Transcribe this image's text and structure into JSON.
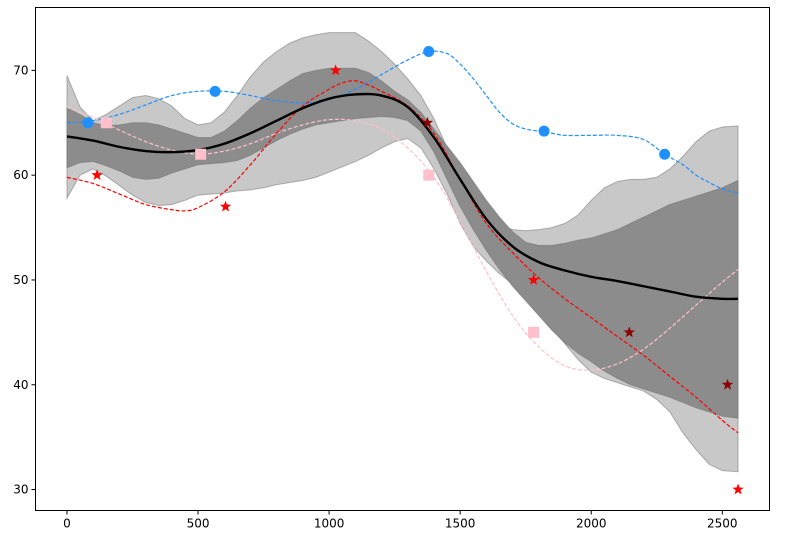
{
  "chart_data": {
    "type": "line",
    "title": "",
    "xlabel": "",
    "ylabel": "",
    "xlim": [
      -120,
      2680
    ],
    "ylim": [
      28,
      76
    ],
    "xticks": [
      0,
      500,
      1000,
      1500,
      2000,
      2500
    ],
    "yticks": [
      30,
      40,
      50,
      60,
      70
    ],
    "xtick_labels": [
      "0",
      "500",
      "1000",
      "1500",
      "2000",
      "2500"
    ],
    "ytick_labels": [
      "30",
      "40",
      "50",
      "60",
      "70"
    ],
    "grid": false,
    "legend": "none",
    "colors": {
      "mean": "#000000",
      "band_inner": "#8c8c8c",
      "band_outer": "#c8c8c8",
      "blue": "#1e90ff",
      "pink": "#ffc0cb",
      "red": "#ff0000",
      "darkred": "#8b0000"
    },
    "mean": {
      "x": [
        0,
        100,
        200,
        300,
        400,
        500,
        600,
        700,
        800,
        900,
        1000,
        1100,
        1200,
        1300,
        1400,
        1500,
        1600,
        1700,
        1800,
        1900,
        2000,
        2100,
        2200,
        2300,
        2400,
        2500,
        2560
      ],
      "y": [
        63.7,
        63.3,
        62.7,
        62.3,
        62.2,
        62.4,
        63.0,
        64.0,
        65.2,
        66.4,
        67.3,
        67.7,
        67.6,
        66.5,
        63.6,
        59.6,
        55.8,
        53.2,
        51.7,
        50.9,
        50.3,
        49.9,
        49.4,
        48.9,
        48.4,
        48.2,
        48.2
      ]
    },
    "inner_band": {
      "x": [
        0,
        50,
        100,
        150,
        200,
        250,
        300,
        350,
        400,
        450,
        500,
        550,
        600,
        650,
        700,
        750,
        800,
        850,
        900,
        950,
        1000,
        1050,
        1100,
        1150,
        1200,
        1250,
        1300,
        1350,
        1400,
        1450,
        1500,
        1550,
        1600,
        1650,
        1700,
        1750,
        1800,
        1850,
        1900,
        1950,
        2000,
        2050,
        2100,
        2150,
        2200,
        2250,
        2300,
        2350,
        2400,
        2450,
        2500,
        2560
      ],
      "upper": [
        66.4,
        65.8,
        65.0,
        64.7,
        64.8,
        65.0,
        65.0,
        64.8,
        64.4,
        64.0,
        63.6,
        63.6,
        64.2,
        65.2,
        66.4,
        67.4,
        68.2,
        69.0,
        69.7,
        70.0,
        70.2,
        70.2,
        70.2,
        69.8,
        69.0,
        68.0,
        67.2,
        66.0,
        64.4,
        62.8,
        61.2,
        59.4,
        57.6,
        56.0,
        54.6,
        53.6,
        53.3,
        53.3,
        53.5,
        53.8,
        54.0,
        54.4,
        54.8,
        55.4,
        56.0,
        56.6,
        57.2,
        57.6,
        58.0,
        58.4,
        58.8,
        59.5
      ],
      "lower": [
        60.7,
        61.2,
        61.3,
        60.9,
        60.4,
        59.8,
        59.6,
        59.7,
        60.2,
        60.6,
        61.0,
        61.1,
        61.2,
        61.4,
        61.9,
        62.6,
        63.3,
        63.9,
        64.4,
        64.8,
        65.0,
        65.2,
        65.4,
        65.5,
        65.6,
        65.5,
        65.2,
        64.2,
        62.2,
        59.6,
        57.0,
        54.8,
        52.8,
        51.0,
        49.4,
        48.0,
        46.6,
        45.2,
        44.0,
        43.0,
        42.2,
        41.3,
        40.6,
        40.0,
        39.6,
        39.2,
        38.8,
        38.3,
        37.8,
        37.4,
        37.0,
        36.8
      ]
    },
    "outer_band": {
      "x": [
        0,
        50,
        100,
        150,
        200,
        250,
        300,
        350,
        400,
        450,
        500,
        550,
        600,
        650,
        700,
        750,
        800,
        850,
        900,
        950,
        1000,
        1050,
        1100,
        1150,
        1200,
        1250,
        1300,
        1350,
        1400,
        1450,
        1500,
        1550,
        1600,
        1650,
        1700,
        1750,
        1800,
        1850,
        1900,
        1950,
        2000,
        2050,
        2100,
        2150,
        2200,
        2250,
        2300,
        2350,
        2400,
        2450,
        2500,
        2560
      ],
      "upper": [
        69.5,
        66.5,
        65.2,
        65.8,
        66.6,
        67.4,
        67.6,
        67.3,
        66.6,
        65.4,
        64.8,
        65.0,
        66.0,
        67.6,
        69.4,
        70.8,
        71.8,
        72.6,
        73.1,
        73.4,
        73.6,
        73.6,
        73.6,
        72.8,
        71.8,
        70.6,
        69.2,
        67.6,
        65.4,
        62.6,
        59.8,
        57.6,
        56.1,
        55.2,
        54.8,
        54.7,
        54.8,
        55.0,
        55.4,
        56.2,
        57.6,
        58.8,
        59.4,
        59.6,
        59.6,
        59.8,
        60.6,
        61.8,
        63.2,
        64.2,
        64.6,
        64.7
      ],
      "lower": [
        57.8,
        60.0,
        60.6,
        59.9,
        59.0,
        58.1,
        57.4,
        57.1,
        57.2,
        57.6,
        58.1,
        58.2,
        58.3,
        58.5,
        58.6,
        58.8,
        59.1,
        59.3,
        59.5,
        59.8,
        60.3,
        60.8,
        61.3,
        61.9,
        62.6,
        63.2,
        63.5,
        62.6,
        60.6,
        58.2,
        55.4,
        53.2,
        51.8,
        50.6,
        49.6,
        48.4,
        47.0,
        45.4,
        43.9,
        42.4,
        41.2,
        40.6,
        40.2,
        39.8,
        39.4,
        38.6,
        37.4,
        35.4,
        33.8,
        32.4,
        31.8,
        31.7
      ]
    },
    "series": [
      {
        "color": "#1e90ff",
        "marker": "circle",
        "x": [
          80,
          565,
          1380,
          1820,
          2280
        ],
        "y": [
          65.0,
          68.0,
          71.8,
          64.2,
          62.0
        ],
        "curve_x": [
          0,
          100,
          200,
          300,
          400,
          500,
          600,
          700,
          800,
          900,
          1000,
          1100,
          1200,
          1300,
          1380,
          1450,
          1500,
          1550,
          1600,
          1650,
          1700,
          1750,
          1800,
          1850,
          1900,
          2000,
          2100,
          2200,
          2280,
          2350,
          2400,
          2450,
          2500,
          2560
        ],
        "curve_y": [
          65.0,
          65.2,
          65.8,
          66.7,
          67.6,
          68.0,
          68.0,
          67.6,
          67.1,
          66.9,
          67.2,
          68.2,
          69.6,
          71.0,
          71.8,
          71.6,
          70.6,
          69.2,
          67.6,
          66.0,
          64.9,
          64.4,
          64.2,
          64.0,
          63.8,
          63.8,
          63.8,
          63.4,
          62.0,
          61.0,
          60.0,
          59.3,
          58.7,
          58.3
        ]
      },
      {
        "color": "#ffc0cb",
        "marker": "square",
        "x": [
          150,
          510,
          1380,
          1780
        ],
        "y": [
          65.0,
          62.0,
          60.0,
          45.0
        ],
        "curve_x": [
          0,
          100,
          200,
          300,
          400,
          500,
          600,
          700,
          800,
          900,
          1000,
          1100,
          1200,
          1300,
          1400,
          1500,
          1600,
          1700,
          1800,
          1900,
          2000,
          2100,
          2200,
          2300,
          2400,
          2500,
          2560
        ],
        "curve_y": [
          66.5,
          65.5,
          64.3,
          63.2,
          62.4,
          62.0,
          62.3,
          63.0,
          64.0,
          64.8,
          65.3,
          65.2,
          64.4,
          62.6,
          59.8,
          55.6,
          50.8,
          46.6,
          43.6,
          41.8,
          41.4,
          42.0,
          43.4,
          45.4,
          47.6,
          49.8,
          51.0
        ]
      },
      {
        "color": "#ff0000",
        "marker": "star",
        "x": [
          115,
          605,
          1025,
          1375,
          1780,
          2145,
          2520,
          2560
        ],
        "y": [
          60.0,
          57.0,
          70.0,
          65.0,
          50.0,
          45.0,
          40.0,
          30.0
        ],
        "curve_x": [
          0,
          100,
          200,
          300,
          400,
          450,
          500,
          600,
          700,
          800,
          900,
          1000,
          1050,
          1100,
          1150,
          1200,
          1300,
          1400,
          1500,
          1600,
          1700,
          1800,
          1900,
          2000,
          2100,
          2200,
          2300,
          2400,
          2500,
          2560
        ],
        "curve_y": [
          59.8,
          59.2,
          58.2,
          57.2,
          56.7,
          56.6,
          56.9,
          58.4,
          61.0,
          64.0,
          66.6,
          68.2,
          68.8,
          69.0,
          68.6,
          68.0,
          66.6,
          64.0,
          59.6,
          55.4,
          52.6,
          50.2,
          48.2,
          46.4,
          44.6,
          42.8,
          40.8,
          38.8,
          36.6,
          35.4
        ]
      }
    ],
    "darkred_marker_x": [
      1375,
      2145,
      2520
    ]
  }
}
